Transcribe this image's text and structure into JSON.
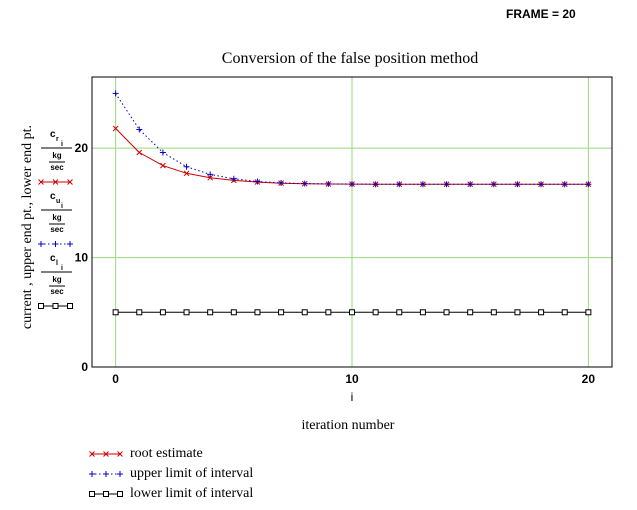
{
  "header": {
    "frame_label": "FRAME = 20"
  },
  "chart_data": {
    "type": "line",
    "title": "Conversion of the false position method",
    "xlabel": "iteration number",
    "x_axis_var": "i",
    "ylabel": "current , upper end pt., lower end pt.",
    "xlim": [
      -1,
      21
    ],
    "ylim": [
      0,
      26.5
    ],
    "x_ticks": [
      0,
      10,
      20
    ],
    "y_ticks": [
      0,
      10,
      20
    ],
    "grid": true,
    "grid_color": "#99d97a",
    "legend_position": "bottom",
    "x": [
      0,
      1,
      2,
      3,
      4,
      5,
      6,
      7,
      8,
      9,
      10,
      11,
      12,
      13,
      14,
      15,
      16,
      17,
      18,
      19,
      20
    ],
    "series": [
      {
        "name": "root estimate",
        "unit_label": {
          "var": "c",
          "sub": "r",
          "idx": "i",
          "num": "kg",
          "den": "sec"
        },
        "color": "#cc0000",
        "line": "solid",
        "marker": "x",
        "values": [
          21.8,
          19.6,
          18.4,
          17.7,
          17.3,
          17.05,
          16.9,
          16.8,
          16.75,
          16.72,
          16.71,
          16.7,
          16.7,
          16.7,
          16.7,
          16.7,
          16.7,
          16.7,
          16.7,
          16.7,
          16.7
        ]
      },
      {
        "name": "upper limit of interval",
        "unit_label": {
          "var": "c",
          "sub": "u",
          "idx": "i",
          "num": "kg",
          "den": "sec"
        },
        "color": "#0000cc",
        "line": "dotted",
        "marker": "plus",
        "values": [
          25.0,
          21.7,
          19.6,
          18.3,
          17.6,
          17.2,
          16.95,
          16.82,
          16.76,
          16.73,
          16.71,
          16.7,
          16.7,
          16.7,
          16.7,
          16.7,
          16.7,
          16.7,
          16.7,
          16.7,
          16.7
        ]
      },
      {
        "name": "lower limit of interval",
        "unit_label": {
          "var": "c",
          "sub": "l",
          "idx": "i",
          "num": "kg",
          "den": "sec"
        },
        "color": "#000000",
        "line": "solid",
        "marker": "square",
        "values": [
          5,
          5,
          5,
          5,
          5,
          5,
          5,
          5,
          5,
          5,
          5,
          5,
          5,
          5,
          5,
          5,
          5,
          5,
          5,
          5,
          5
        ]
      }
    ]
  }
}
